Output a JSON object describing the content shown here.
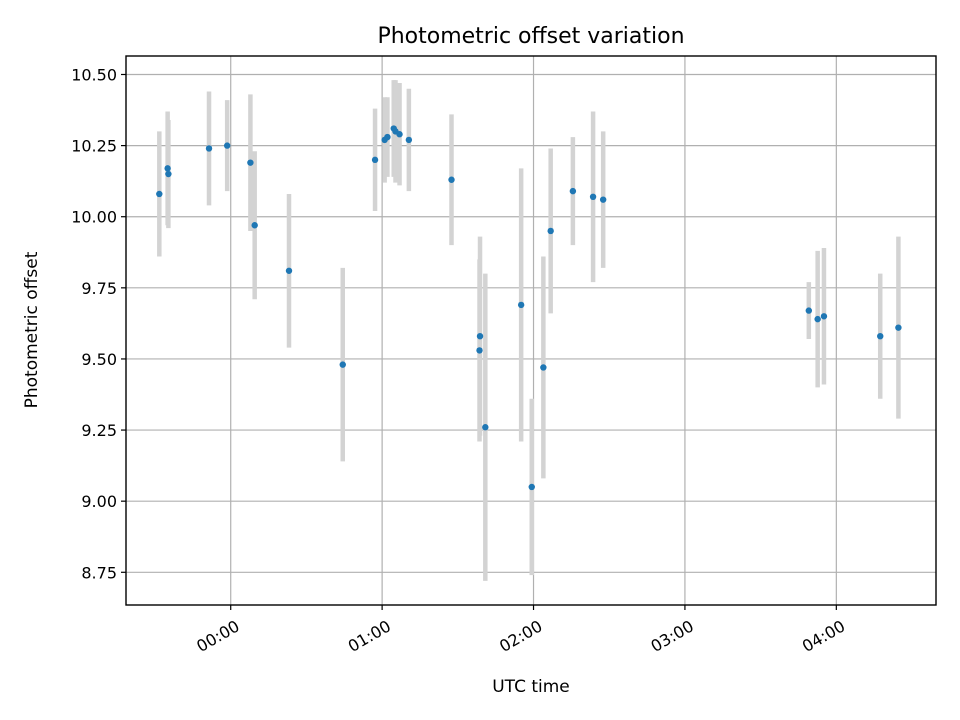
{
  "chart_data": {
    "type": "scatter",
    "title": "Photometric offset variation",
    "xlabel": "UTC time",
    "ylabel": "Photometric offset",
    "xlim_minutes": [
      -41.5,
      279.5
    ],
    "ylim": [
      8.635,
      10.565
    ],
    "xticks": [
      {
        "minutes": 0,
        "label": "00:00"
      },
      {
        "minutes": 60,
        "label": "01:00"
      },
      {
        "minutes": 120,
        "label": "02:00"
      },
      {
        "minutes": 180,
        "label": "03:00"
      },
      {
        "minutes": 240,
        "label": "04:00"
      }
    ],
    "yticks": [
      8.75,
      9.0,
      9.25,
      9.5,
      9.75,
      10.0,
      10.25,
      10.5
    ],
    "grid": true,
    "marker_color": "#1f77b4",
    "errorbar_color": "#d3d3d3",
    "points": [
      {
        "t": -28.3,
        "y": 10.08,
        "err": 0.22
      },
      {
        "t": -25.0,
        "y": 10.17,
        "err": 0.2
      },
      {
        "t": -24.7,
        "y": 10.15,
        "err": 0.19
      },
      {
        "t": -8.6,
        "y": 10.24,
        "err": 0.2
      },
      {
        "t": -1.4,
        "y": 10.25,
        "err": 0.16
      },
      {
        "t": 7.8,
        "y": 10.19,
        "err": 0.24
      },
      {
        "t": 9.5,
        "y": 9.97,
        "err": 0.26
      },
      {
        "t": 23.1,
        "y": 9.81,
        "err": 0.27
      },
      {
        "t": 44.4,
        "y": 9.48,
        "err": 0.34
      },
      {
        "t": 57.2,
        "y": 10.2,
        "err": 0.18
      },
      {
        "t": 61.0,
        "y": 10.27,
        "err": 0.15
      },
      {
        "t": 62.1,
        "y": 10.28,
        "err": 0.14
      },
      {
        "t": 64.6,
        "y": 10.31,
        "err": 0.17
      },
      {
        "t": 65.3,
        "y": 10.3,
        "err": 0.18
      },
      {
        "t": 66.9,
        "y": 10.29,
        "err": 0.18
      },
      {
        "t": 70.6,
        "y": 10.27,
        "err": 0.18
      },
      {
        "t": 87.5,
        "y": 10.13,
        "err": 0.23
      },
      {
        "t": 98.6,
        "y": 9.53,
        "err": 0.32
      },
      {
        "t": 98.8,
        "y": 9.58,
        "err": 0.35
      },
      {
        "t": 100.9,
        "y": 9.26,
        "err": 0.54
      },
      {
        "t": 115.1,
        "y": 9.69,
        "err": 0.48
      },
      {
        "t": 119.3,
        "y": 9.05,
        "err": 0.31
      },
      {
        "t": 123.9,
        "y": 9.47,
        "err": 0.39
      },
      {
        "t": 126.8,
        "y": 9.95,
        "err": 0.29
      },
      {
        "t": 135.6,
        "y": 10.09,
        "err": 0.19
      },
      {
        "t": 143.6,
        "y": 10.07,
        "err": 0.3
      },
      {
        "t": 147.6,
        "y": 10.06,
        "err": 0.24
      },
      {
        "t": 229.1,
        "y": 9.67,
        "err": 0.1
      },
      {
        "t": 232.6,
        "y": 9.64,
        "err": 0.24
      },
      {
        "t": 235.1,
        "y": 9.65,
        "err": 0.24
      },
      {
        "t": 257.4,
        "y": 9.58,
        "err": 0.22
      },
      {
        "t": 264.6,
        "y": 9.61,
        "err": 0.32
      }
    ]
  }
}
